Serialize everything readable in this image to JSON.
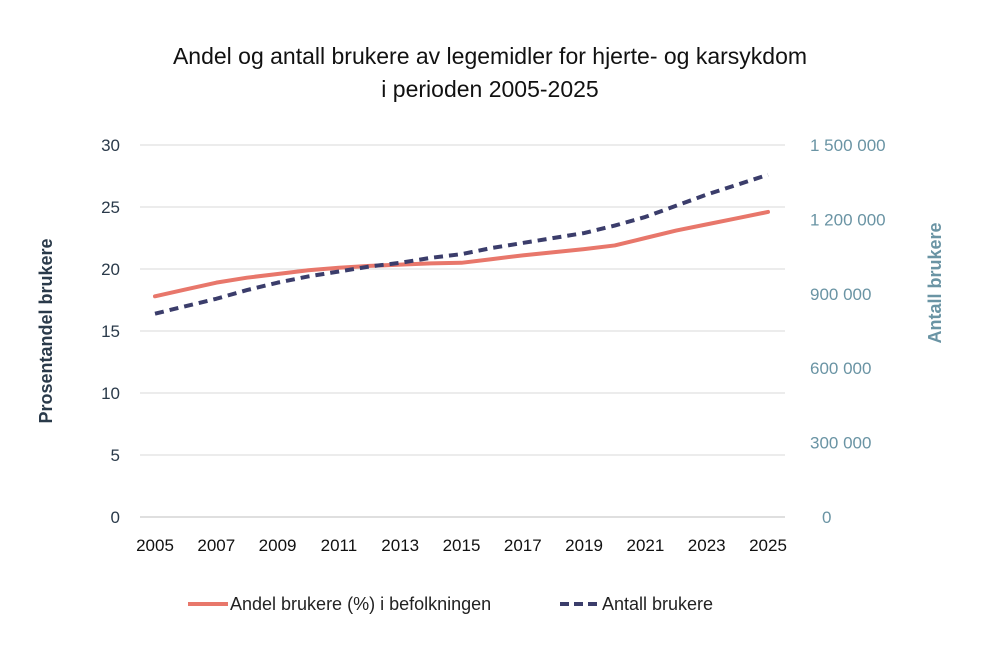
{
  "chart_data": {
    "type": "line",
    "title_line1": "Andel og antall brukere av legemidler for hjerte- og karsykdom",
    "title_line2": "i perioden 2005-2025",
    "ylabel": "Prosentandel brukere",
    "y2label": "Antall brukere",
    "ylim": [
      0,
      30
    ],
    "y2lim": [
      0,
      1500000
    ],
    "yticks": [
      "0",
      "5",
      "10",
      "15",
      "20",
      "25",
      "30"
    ],
    "y2ticks": [
      "0",
      "300 000",
      "600 000",
      "900 000",
      "1 200 000",
      "1 500 000"
    ],
    "xticks": [
      "2005",
      "2007",
      "2009",
      "2011",
      "2013",
      "2015",
      "2017",
      "2019",
      "2021",
      "2023",
      "2025"
    ],
    "x": [
      2005,
      2006,
      2007,
      2008,
      2009,
      2010,
      2011,
      2012,
      2013,
      2014,
      2015,
      2016,
      2017,
      2018,
      2019,
      2020,
      2021,
      2022,
      2023,
      2024,
      2025
    ],
    "grid": true,
    "legend": "bottom",
    "series": [
      {
        "name": "Andel brukere (%) i befolkningen",
        "axis": "left",
        "color": "#e8776b",
        "dash": false,
        "values": [
          17.8,
          18.35,
          18.9,
          19.3,
          19.6,
          19.9,
          20.1,
          20.25,
          20.35,
          20.45,
          20.5,
          20.8,
          21.1,
          21.35,
          21.6,
          21.9,
          22.5,
          23.1,
          23.6,
          24.1,
          24.6
        ]
      },
      {
        "name": "Antall brukere",
        "axis": "right",
        "color": "#3b3d6b",
        "dash": true,
        "values": [
          820000,
          850000,
          880000,
          915000,
          945000,
          970000,
          990000,
          1010000,
          1025000,
          1045000,
          1060000,
          1085000,
          1105000,
          1125000,
          1145000,
          1175000,
          1210000,
          1255000,
          1300000,
          1340000,
          1380000
        ]
      }
    ],
    "colors": {
      "left_axis": "#2a3a4a",
      "right_axis": "#6a94a4",
      "grid": "#d9d9d9"
    }
  }
}
